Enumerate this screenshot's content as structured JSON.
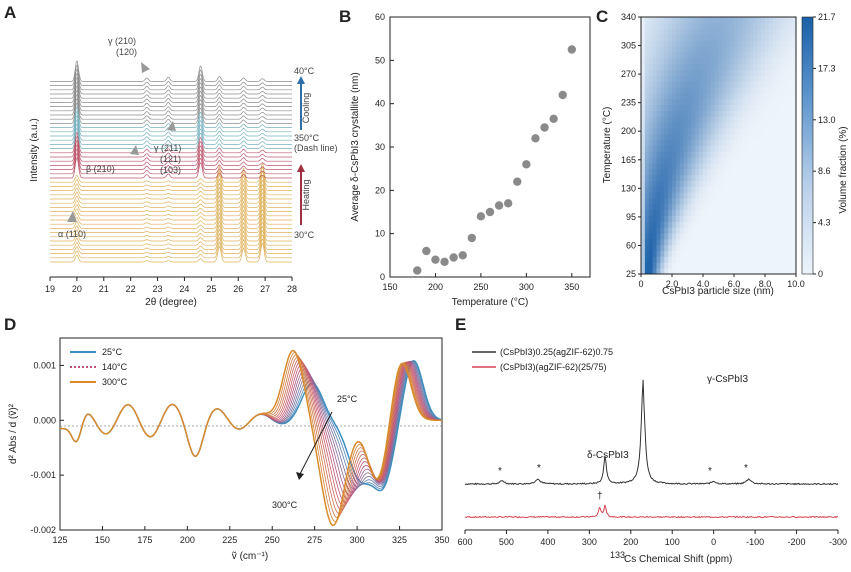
{
  "chart_data": [
    {
      "panel": "A",
      "type": "line",
      "description_series": "stacked temperature-dependent XRD patterns",
      "xlabel": "2θ (degree)",
      "ylabel": "Intensity (a.u.)",
      "xlim": [
        19,
        28
      ],
      "xticks": [
        "19",
        "20",
        "21",
        "22",
        "23",
        "24",
        "25",
        "26",
        "27",
        "28"
      ],
      "peaks_2theta": [
        20.0,
        22.6,
        23.4,
        24.6,
        25.3,
        26.2,
        26.9
      ],
      "phase_labels": [
        "γ (210)",
        "(120)",
        "γ (211)",
        "(121)",
        "(103)",
        "β (210)",
        "α (110)"
      ],
      "temperature_labels": [
        "40°C",
        "350°C",
        "(Dash line)",
        "30°C"
      ],
      "process_labels": [
        "Cooling",
        "Heating"
      ],
      "colors": {
        "heating": "#d9a441",
        "hot": "#b03a52",
        "cooling": "#5fa3b3",
        "gray": "#777777"
      }
    },
    {
      "panel": "B",
      "type": "scatter",
      "xlabel": "Temperature (°C)",
      "ylabel": "Average δ-CsPbI3 crystallite (nm)",
      "xlim": [
        150,
        370
      ],
      "ylim": [
        0,
        60
      ],
      "xticks": [
        "150",
        "200",
        "250",
        "300",
        "350"
      ],
      "yticks": [
        "0",
        "10",
        "20",
        "30",
        "40",
        "50",
        "60"
      ],
      "x": [
        180,
        190,
        200,
        210,
        220,
        230,
        240,
        250,
        260,
        270,
        280,
        290,
        300,
        310,
        320,
        330,
        340,
        350
      ],
      "y": [
        1.5,
        6,
        4,
        3.5,
        4.5,
        5,
        9,
        14,
        15,
        16.5,
        17,
        22,
        26,
        32,
        34.5,
        36.5,
        42,
        52.5
      ],
      "marker_color": "#8a8a8a"
    },
    {
      "panel": "C",
      "type": "heatmap",
      "xlabel": "CsPbI3 particle size (nm)",
      "ylabel": "Temperature (°C)",
      "colorbar_label": "Volume fraction (%)",
      "xlim": [
        0,
        10
      ],
      "xticks": [
        "0",
        "2.0",
        "4.0",
        "6.0",
        "8.0",
        "10.0"
      ],
      "yticks": [
        "25",
        "60",
        "95",
        "130",
        "165",
        "200",
        "235",
        "270",
        "305",
        "340"
      ],
      "colorbar_ticks": [
        "21.7",
        "17.3",
        "13.0",
        "8.6",
        "4.3",
        "0"
      ],
      "colorbar_range": [
        0,
        21.7
      ],
      "colors": {
        "low": "#eef4fb",
        "high": "#1a5fa8"
      }
    },
    {
      "panel": "D",
      "type": "line",
      "xlabel": "ṽ (cm⁻¹)",
      "ylabel": "d² Abs / d (ṽ)²",
      "xlim": [
        125,
        350
      ],
      "ylim": [
        -0.002,
        0.0015
      ],
      "xticks": [
        "125",
        "150",
        "175",
        "200",
        "225",
        "250",
        "275",
        "300",
        "325",
        "350"
      ],
      "yticks": [
        "0.001",
        "0.000",
        "-0.001",
        "-0.002"
      ],
      "series": [
        {
          "name": "25°C",
          "color": "#3b8fc1",
          "style": "solid"
        },
        {
          "name": "140°C",
          "color": "#c0507a",
          "style": "dotted"
        },
        {
          "name": "300°C",
          "color": "#d98a2b",
          "style": "solid"
        }
      ],
      "annotations": [
        "25°C",
        "300°C"
      ]
    },
    {
      "panel": "E",
      "type": "line",
      "xlabel": "Cs Chemical Shift (ppm)",
      "xlabel_superscript": "133",
      "xlim": [
        600,
        -300
      ],
      "xticks": [
        "600",
        "500",
        "400",
        "300",
        "200",
        "100",
        "0",
        "-100",
        "-200",
        "-300"
      ],
      "series": [
        {
          "name": "(CsPbI3)0.25(agZIF-62)0.75",
          "color": "#333333"
        },
        {
          "name": "(CsPbI3)(agZIF-62)(25/75)",
          "color": "#d64550"
        }
      ],
      "peak_labels": [
        "γ-CsPbI3",
        "δ-CsPbI3"
      ],
      "peaks_ppm": {
        "gamma": 170,
        "delta": 262,
        "red": [
          275,
          262
        ]
      },
      "sideband_marker": "*",
      "dagger_marker": "†"
    }
  ],
  "panels": {
    "A": {
      "letter": "A",
      "x_label": "2θ (degree)",
      "y_label": "Intensity (a.u.)",
      "t_top": "40°C",
      "t_mid": "350°C",
      "t_mid2": "(Dash line)",
      "t_bot": "30°C",
      "cooling": "Cooling",
      "heating": "Heating",
      "g210": "γ (210)",
      "g120": "(120)",
      "g211": "γ (211)",
      "g121": "(121)",
      "g103": "(103)",
      "b210": "β (210)",
      "a110": "α (110)"
    },
    "B": {
      "letter": "B",
      "x_label": "Temperature (°C)",
      "y_label": "Average δ-CsPbI3 crystallite (nm)"
    },
    "C": {
      "letter": "C",
      "x_label": "CsPbI3 particle size (nm)",
      "y_label": "Temperature (°C)",
      "cb_label": "Volume fraction (%)"
    },
    "D": {
      "letter": "D",
      "x_label": "ṽ (cm⁻¹)",
      "y_label": "d² Abs / d (ṽ)²",
      "leg1": "25°C",
      "leg2": "140°C",
      "leg3": "300°C",
      "ann25": "25°C",
      "ann300": "300°C"
    },
    "E": {
      "letter": "E",
      "x_label": "Cs Chemical Shift (ppm)",
      "x_label_sup": "133",
      "leg1": "(CsPbI3)0.25(agZIF-62)0.75",
      "leg2": "(CsPbI3)(agZIF-62)(25/75)",
      "gamma": "γ-CsPbI3",
      "delta": "δ-CsPbI3",
      "star": "*",
      "dagger": "†"
    }
  }
}
